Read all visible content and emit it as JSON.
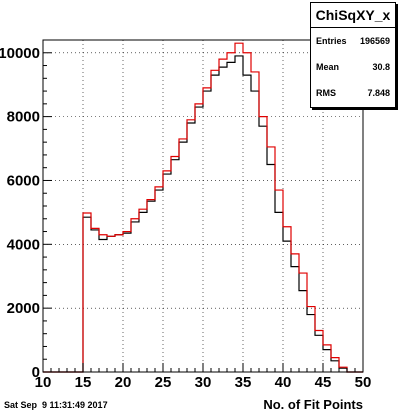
{
  "chart_data": {
    "type": "histogram",
    "title": "ChiSqXY_x",
    "xlabel": "No. of Fit Points",
    "ylabel": "",
    "xlim": [
      10,
      50
    ],
    "ylim": [
      0,
      10400
    ],
    "x_ticks": [
      10,
      15,
      20,
      25,
      30,
      35,
      40,
      45,
      50
    ],
    "y_ticks": [
      0,
      2000,
      4000,
      6000,
      8000,
      10000
    ],
    "y_tick_labels": [
      "0",
      "2000",
      "4000",
      "6000",
      "8000",
      "10000"
    ],
    "grid": true,
    "bin_edges": [
      10,
      11,
      12,
      13,
      14,
      15,
      16,
      17,
      18,
      19,
      20,
      21,
      22,
      23,
      24,
      25,
      26,
      27,
      28,
      29,
      30,
      31,
      32,
      33,
      34,
      35,
      36,
      37,
      38,
      39,
      40,
      41,
      42,
      43,
      44,
      45,
      46,
      47,
      48,
      49,
      50
    ],
    "series": [
      {
        "color": "#000000",
        "values": [
          0,
          0,
          0,
          0,
          0,
          4850,
          4450,
          4150,
          4250,
          4300,
          4350,
          4700,
          5000,
          5350,
          5700,
          6200,
          6650,
          7200,
          7800,
          8300,
          8800,
          9300,
          9550,
          9700,
          9900,
          9300,
          8800,
          7700,
          6500,
          5000,
          4100,
          3300,
          2550,
          1800,
          1150,
          700,
          350,
          120,
          0,
          0
        ]
      },
      {
        "color": "#e00000",
        "values": [
          0,
          0,
          0,
          0,
          0,
          4980,
          4500,
          4300,
          4250,
          4300,
          4400,
          4800,
          5100,
          5400,
          5800,
          6300,
          6750,
          7300,
          7900,
          8400,
          8900,
          9450,
          9800,
          10000,
          10300,
          10000,
          9400,
          8000,
          7050,
          5700,
          4550,
          3700,
          3100,
          2050,
          1300,
          850,
          450,
          150,
          0,
          0
        ]
      }
    ]
  },
  "stats": {
    "title": "ChiSqXY_x",
    "entries_label": "Entries",
    "entries_value": "196569",
    "mean_label": "Mean",
    "mean_value": "30.8",
    "rms_label": "RMS",
    "rms_value": "7.848"
  },
  "footer": {
    "date_text": "Sat Sep  9 11:31:49 2017"
  }
}
